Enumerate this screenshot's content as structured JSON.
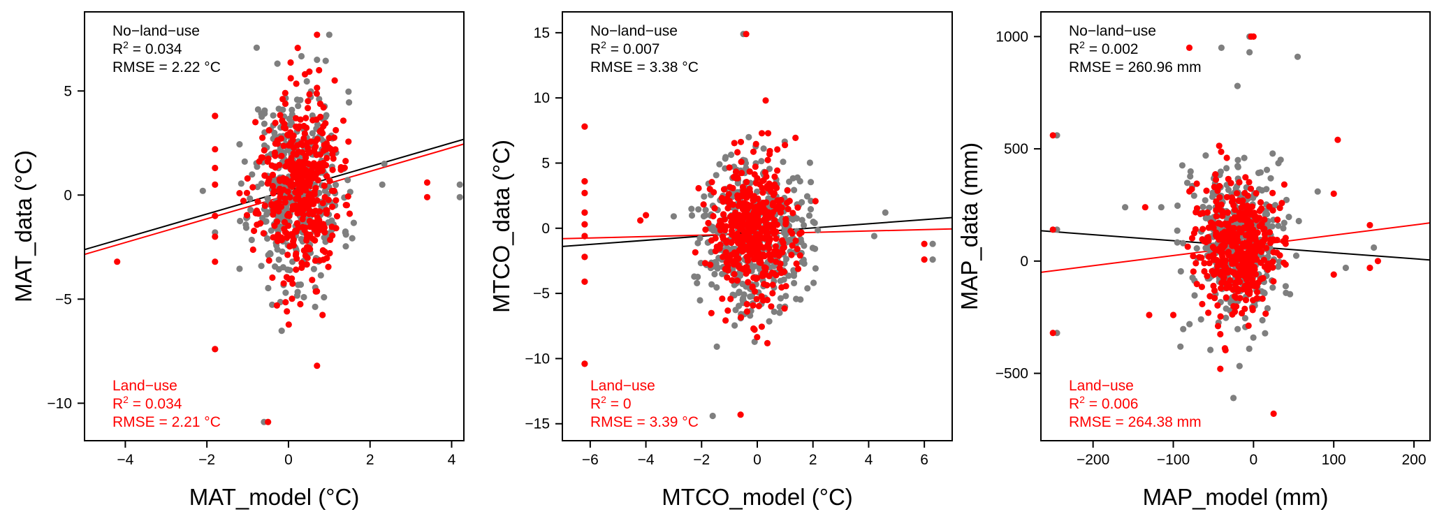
{
  "colors": {
    "no_land_use": "#000000",
    "land_use": "#ff0000",
    "points_no_land_use": "#7f7f7f",
    "points_land_use": "#ff0000"
  },
  "chart_data": [
    {
      "type": "scatter",
      "xlabel": "MAT_model (°C)",
      "ylabel": "MAT_data (°C)",
      "xlim": [
        -5.0,
        4.3
      ],
      "ylim": [
        -11.8,
        8.8
      ],
      "xticks": [
        -4,
        -2,
        0,
        2,
        4
      ],
      "yticks": [
        -10,
        -5,
        0,
        5
      ],
      "annotations": {
        "no_land_use": {
          "title": "No−land−use",
          "r2_label": "R",
          "r2_value": " = 0.034",
          "rmse": "RMSE = 2.22 °C"
        },
        "land_use": {
          "title": "Land−use",
          "r2_label": "R",
          "r2_value": " = 0.034",
          "rmse": "RMSE = 2.21 °C"
        }
      },
      "series": [
        {
          "name": "No-land-use regression",
          "kind": "line",
          "x": [
            -5.0,
            4.3
          ],
          "y": [
            -2.62,
            2.68
          ]
        },
        {
          "name": "Land-use regression",
          "kind": "line",
          "x": [
            -5.0,
            4.3
          ],
          "y": [
            -2.85,
            2.45
          ]
        },
        {
          "name": "No-land-use",
          "kind": "points",
          "seed": 11,
          "n": 420,
          "cluster": {
            "x_center": 0.2,
            "x_sd": 0.55,
            "y_center": 0.4,
            "y_sd": 2.3,
            "x_range": [
              -1.2,
              1.6
            ],
            "y_range": [
              -8.3,
              7.6
            ]
          },
          "points": [
            [
              -2.1,
              0.2
            ],
            [
              -1.8,
              3.8
            ],
            [
              -1.8,
              -1.8
            ],
            [
              -1.8,
              -7.4
            ],
            [
              2.35,
              1.5
            ],
            [
              2.3,
              0.5
            ],
            [
              4.2,
              0.5
            ],
            [
              4.2,
              -0.1
            ],
            [
              -0.6,
              -10.9
            ],
            [
              1.0,
              7.7
            ],
            [
              0.7,
              6.5
            ]
          ]
        },
        {
          "name": "Land-use",
          "kind": "points",
          "seed": 23,
          "n": 420,
          "cluster": {
            "x_center": 0.25,
            "x_sd": 0.5,
            "y_center": 0.3,
            "y_sd": 2.2,
            "x_range": [
              -1.2,
              1.5
            ],
            "y_range": [
              -8.2,
              7.7
            ]
          },
          "points": [
            [
              -4.2,
              -3.2
            ],
            [
              -1.8,
              3.8
            ],
            [
              -1.8,
              2.2
            ],
            [
              -1.8,
              1.3
            ],
            [
              -1.8,
              0.5
            ],
            [
              -1.8,
              -1.0
            ],
            [
              -1.8,
              -2.0
            ],
            [
              -1.8,
              -3.2
            ],
            [
              -1.8,
              -7.4
            ],
            [
              3.4,
              0.6
            ],
            [
              3.4,
              -0.1
            ],
            [
              -0.5,
              -10.9
            ],
            [
              0.7,
              -8.2
            ],
            [
              0.75,
              6.0
            ],
            [
              0.7,
              7.7
            ]
          ]
        }
      ]
    },
    {
      "type": "scatter",
      "xlabel": "MTCO_model (°C)",
      "ylabel": "MTCO_data (°C)",
      "xlim": [
        -7.0,
        7.0
      ],
      "ylim": [
        -16.3,
        16.6
      ],
      "xticks": [
        -6,
        -4,
        -2,
        0,
        2,
        4,
        6
      ],
      "yticks": [
        -15,
        -10,
        -5,
        0,
        5,
        10,
        15
      ],
      "annotations": {
        "no_land_use": {
          "title": "No−land−use",
          "r2_label": "R",
          "r2_value": " = 0.007",
          "rmse": "RMSE = 3.38 °C"
        },
        "land_use": {
          "title": "Land−use",
          "r2_label": "R",
          "r2_value": " = 0",
          "rmse": "RMSE = 3.39 °C"
        }
      },
      "series": [
        {
          "name": "No-land-use regression",
          "kind": "line",
          "x": [
            -7.0,
            7.0
          ],
          "y": [
            -1.4,
            0.82
          ]
        },
        {
          "name": "Land-use regression",
          "kind": "line",
          "x": [
            -7.0,
            7.0
          ],
          "y": [
            -0.8,
            -0.05
          ]
        },
        {
          "name": "No-land-use",
          "kind": "points",
          "seed": 37,
          "n": 430,
          "cluster": {
            "x_center": -0.1,
            "x_sd": 0.95,
            "y_center": -0.3,
            "y_sd": 3.0,
            "x_range": [
              -3.0,
              4.8
            ],
            "y_range": [
              -14.0,
              9.8
            ]
          },
          "points": [
            [
              -6.2,
              7.8
            ],
            [
              -6.2,
              3.6
            ],
            [
              -6.2,
              2.7
            ],
            [
              -6.2,
              1.2
            ],
            [
              -6.2,
              0.3
            ],
            [
              -6.2,
              -0.6
            ],
            [
              -6.2,
              -2.2
            ],
            [
              -6.2,
              -4.1
            ],
            [
              -6.2,
              -10.4
            ],
            [
              -0.5,
              14.9
            ],
            [
              6.3,
              -1.2
            ],
            [
              6.3,
              -2.4
            ],
            [
              4.2,
              -0.6
            ],
            [
              4.6,
              1.2
            ],
            [
              -1.6,
              -14.4
            ]
          ]
        },
        {
          "name": "Land-use",
          "kind": "points",
          "seed": 53,
          "n": 430,
          "cluster": {
            "x_center": -0.1,
            "x_sd": 0.8,
            "y_center": -0.4,
            "y_sd": 2.8,
            "x_range": [
              -2.5,
              4.0
            ],
            "y_range": [
              -12.0,
              9.8
            ]
          },
          "points": [
            [
              -6.2,
              7.8
            ],
            [
              -6.2,
              3.6
            ],
            [
              -6.2,
              2.7
            ],
            [
              -6.2,
              1.2
            ],
            [
              -6.2,
              0.3
            ],
            [
              -6.2,
              -0.6
            ],
            [
              -6.2,
              -2.2
            ],
            [
              -6.2,
              -4.1
            ],
            [
              -6.2,
              -10.4
            ],
            [
              -0.4,
              14.9
            ],
            [
              6.0,
              -1.2
            ],
            [
              6.0,
              -2.4
            ],
            [
              -0.6,
              -14.3
            ],
            [
              0.3,
              9.8
            ],
            [
              -4.2,
              0.6
            ],
            [
              -4.0,
              1.0
            ]
          ]
        }
      ]
    },
    {
      "type": "scatter",
      "xlabel": "MAP_model (mm)",
      "ylabel": "MAP_data (mm)",
      "xlim": [
        -265,
        220
      ],
      "ylim": [
        -800,
        1110
      ],
      "xticks": [
        -200,
        -100,
        0,
        100,
        200
      ],
      "yticks": [
        -500,
        0,
        500,
        1000
      ],
      "annotations": {
        "no_land_use": {
          "title": "No−land−use",
          "r2_label": "R",
          "r2_value": " = 0.002",
          "rmse": "RMSE = 260.96 mm"
        },
        "land_use": {
          "title": "Land−use",
          "r2_label": "R",
          "r2_value": " = 0.006",
          "rmse": "RMSE = 264.38 mm"
        }
      },
      "series": [
        {
          "name": "No-land-use regression",
          "kind": "line",
          "x": [
            -265,
            220
          ],
          "y": [
            135,
            5
          ]
        },
        {
          "name": "Land-use regression",
          "kind": "line",
          "x": [
            -265,
            220
          ],
          "y": [
            -50,
            170
          ]
        },
        {
          "name": "No-land-use",
          "kind": "points",
          "seed": 71,
          "n": 420,
          "cluster": {
            "x_center": -20,
            "x_sd": 28,
            "y_center": 70,
            "y_sd": 170,
            "x_range": [
              -95,
              60
            ],
            "y_range": [
              -690,
              950
            ]
          },
          "points": [
            [
              -245,
              560
            ],
            [
              -245,
              140
            ],
            [
              -245,
              -320
            ],
            [
              -160,
              240
            ],
            [
              -115,
              240
            ],
            [
              150,
              60
            ],
            [
              115,
              -30
            ],
            [
              80,
              310
            ],
            [
              -40,
              950
            ],
            [
              -20,
              780
            ],
            [
              -5,
              930
            ],
            [
              -5,
              1000
            ],
            [
              55,
              910
            ],
            [
              -25,
              -610
            ]
          ]
        },
        {
          "name": "Land-use",
          "kind": "points",
          "seed": 89,
          "n": 420,
          "cluster": {
            "x_center": -20,
            "x_sd": 25,
            "y_center": 60,
            "y_sd": 150,
            "x_range": [
              -90,
              40
            ],
            "y_range": [
              -680,
              950
            ]
          },
          "points": [
            [
              -250,
              560
            ],
            [
              -250,
              140
            ],
            [
              -250,
              -320
            ],
            [
              -135,
              240
            ],
            [
              -130,
              -240
            ],
            [
              100,
              300
            ],
            [
              100,
              -60
            ],
            [
              145,
              160
            ],
            [
              145,
              -30
            ],
            [
              155,
              0
            ],
            [
              -80,
              950
            ],
            [
              0,
              1000
            ],
            [
              -3,
              1000
            ],
            [
              -100,
              -240
            ],
            [
              25,
              -680
            ],
            [
              105,
              540
            ]
          ]
        }
      ]
    }
  ]
}
